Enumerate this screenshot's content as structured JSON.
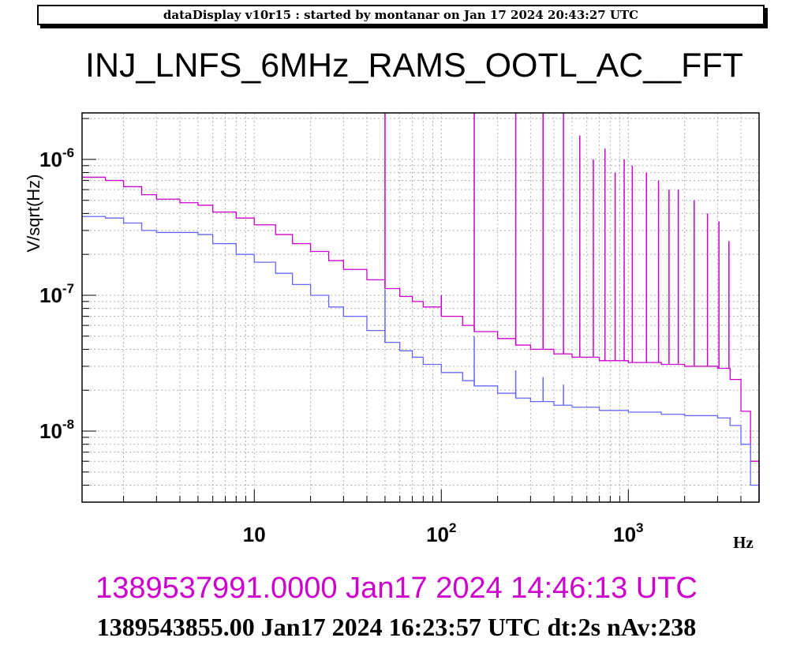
{
  "banner": "dataDisplay v10r15 : started by montanar on Jan 17 2024 20:43:27 UTC",
  "title": "INJ_LNFS_6MHz_RAMS_OOTL_AC__FFT",
  "references": {
    "ref_a": "1389537991.0000 Jan17 2024 14:46:13 UTC",
    "ref_b": "1389543855.00 Jan17 2024 16:23:57 UTC dt:2s nAv:238"
  },
  "colors": {
    "series_a": "#cc00cc",
    "series_b": "#6666ff",
    "grid": "#b0b0b0",
    "axis": "#000000"
  },
  "chart_data": {
    "type": "line",
    "xscale": "log",
    "yscale": "log",
    "grid": true,
    "xlabel": "Hz",
    "ylabel": "V/sqrt(Hz)",
    "xlim": [
      1.2,
      5000
    ],
    "ylim": [
      3e-09,
      2.2e-06
    ],
    "x_ticks": [
      {
        "value": 10,
        "label": "10",
        "exp": ""
      },
      {
        "value": 100,
        "label": "10",
        "exp": "2"
      },
      {
        "value": 1000,
        "label": "10",
        "exp": "3"
      }
    ],
    "y_ticks": [
      {
        "value": 1e-08,
        "label": "10",
        "exp": "-8"
      },
      {
        "value": 1e-07,
        "label": "10",
        "exp": "-7"
      },
      {
        "value": 1e-06,
        "label": "10",
        "exp": "-6"
      }
    ],
    "series": [
      {
        "color": "#cc00cc",
        "x": [
          1.2,
          1.6,
          2,
          2.5,
          3,
          4,
          5,
          6,
          8,
          10,
          13,
          16,
          20,
          25,
          30,
          40,
          50,
          60,
          70,
          80,
          100,
          130,
          150,
          200,
          250,
          300,
          400,
          500,
          700,
          1000,
          1500,
          2000,
          3000,
          3500,
          4000,
          4500,
          5000
        ],
        "y": [
          7.4e-07,
          7e-07,
          6.3e-07,
          5.5e-07,
          5.1e-07,
          4.8e-07,
          4.6e-07,
          4.1e-07,
          3.7e-07,
          3.3e-07,
          2.8e-07,
          2.4e-07,
          2.1e-07,
          1.8e-07,
          1.55e-07,
          1.3e-07,
          1.12e-07,
          9.8e-08,
          9e-08,
          8.2e-08,
          7e-08,
          6e-08,
          5.4e-08,
          4.8e-08,
          4.3e-08,
          4e-08,
          3.7e-08,
          3.5e-08,
          3.3e-08,
          3.2e-08,
          3.1e-08,
          3e-08,
          2.9e-08,
          2.4e-08,
          1.4e-08,
          6e-09,
          3e-09
        ]
      },
      {
        "color": "#6666ff",
        "x": [
          1.2,
          1.6,
          2,
          2.5,
          3,
          4,
          5,
          6,
          8,
          10,
          13,
          16,
          20,
          25,
          30,
          40,
          50,
          60,
          70,
          80,
          100,
          130,
          150,
          200,
          250,
          300,
          400,
          500,
          700,
          1000,
          1500,
          2000,
          3000,
          3500,
          4000,
          4500,
          5000
        ],
        "y": [
          3.8e-07,
          3.7e-07,
          3.4e-07,
          3e-07,
          2.9e-07,
          2.9e-07,
          2.8e-07,
          2.4e-07,
          2e-07,
          1.75e-07,
          1.45e-07,
          1.2e-07,
          1e-07,
          8.2e-08,
          7e-08,
          5.5e-08,
          4.5e-08,
          3.9e-08,
          3.5e-08,
          3.1e-08,
          2.7e-08,
          2.35e-08,
          2.15e-08,
          1.9e-08,
          1.75e-08,
          1.65e-08,
          1.55e-08,
          1.5e-08,
          1.42e-08,
          1.38e-08,
          1.33e-08,
          1.3e-08,
          1.25e-08,
          1.1e-08,
          8e-09,
          4e-09,
          3e-09
        ]
      }
    ],
    "spikes": [
      {
        "x": 50,
        "color": "#cc00cc",
        "y": 2.2e-06
      },
      {
        "x": 100,
        "color": "#cc00cc",
        "y": 1e-07
      },
      {
        "x": 150,
        "color": "#cc00cc",
        "y": 2.2e-06
      },
      {
        "x": 250,
        "color": "#cc00cc",
        "y": 2.2e-06
      },
      {
        "x": 350,
        "color": "#cc00cc",
        "y": 2.2e-06
      },
      {
        "x": 450,
        "color": "#cc00cc",
        "y": 2.2e-06
      },
      {
        "x": 550,
        "color": "#cc00cc",
        "y": 1.5e-06
      },
      {
        "x": 650,
        "color": "#cc00cc",
        "y": 1e-06
      },
      {
        "x": 750,
        "color": "#cc00cc",
        "y": 1.2e-06
      },
      {
        "x": 850,
        "color": "#cc00cc",
        "y": 8e-07
      },
      {
        "x": 950,
        "color": "#cc00cc",
        "y": 1e-06
      },
      {
        "x": 1050,
        "color": "#cc00cc",
        "y": 9e-07
      },
      {
        "x": 1250,
        "color": "#cc00cc",
        "y": 8e-07
      },
      {
        "x": 1450,
        "color": "#cc00cc",
        "y": 7e-07
      },
      {
        "x": 1650,
        "color": "#cc00cc",
        "y": 6e-07
      },
      {
        "x": 1850,
        "color": "#cc00cc",
        "y": 6e-07
      },
      {
        "x": 2250,
        "color": "#cc00cc",
        "y": 5e-07
      },
      {
        "x": 2650,
        "color": "#cc00cc",
        "y": 4e-07
      },
      {
        "x": 3050,
        "color": "#cc00cc",
        "y": 3.5e-07
      },
      {
        "x": 3450,
        "color": "#cc00cc",
        "y": 2.5e-07
      },
      {
        "x": 50,
        "color": "#6666ff",
        "y": 1.1e-07
      },
      {
        "x": 150,
        "color": "#6666ff",
        "y": 5e-08
      },
      {
        "x": 250,
        "color": "#6666ff",
        "y": 2.8e-08
      },
      {
        "x": 350,
        "color": "#6666ff",
        "y": 2.5e-08
      },
      {
        "x": 450,
        "color": "#6666ff",
        "y": 2.2e-08
      }
    ]
  }
}
